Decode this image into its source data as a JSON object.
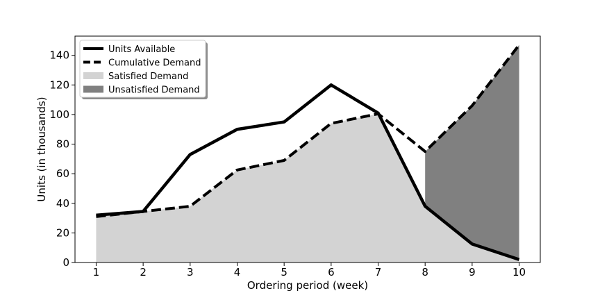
{
  "chart_data": {
    "type": "line",
    "xlabel": "Ordering period (week)",
    "ylabel": "Units (in thousands)",
    "x": [
      1,
      2,
      3,
      4,
      5,
      6,
      7,
      8,
      9,
      10
    ],
    "xlim": [
      0.55,
      10.45
    ],
    "ylim": [
      0,
      153
    ],
    "yticks": [
      0,
      20,
      40,
      60,
      80,
      100,
      120,
      140
    ],
    "grid": false,
    "legend_position": "top-left",
    "series": [
      {
        "name": "Units Available",
        "style": "solid",
        "color": "#000000",
        "values": [
          32,
          34.5,
          73,
          90,
          95,
          120,
          101,
          38,
          12.5,
          2
        ]
      },
      {
        "name": "Cumulative Demand",
        "style": "dashed",
        "color": "#000000",
        "values": [
          31,
          34.5,
          38,
          62.5,
          69,
          94,
          100.5,
          75,
          106,
          147
        ]
      }
    ],
    "areas": [
      {
        "name": "Satisfied Demand",
        "color": "#d3d3d3"
      },
      {
        "name": "Unsatisfied Demand",
        "color": "#808080"
      }
    ]
  }
}
